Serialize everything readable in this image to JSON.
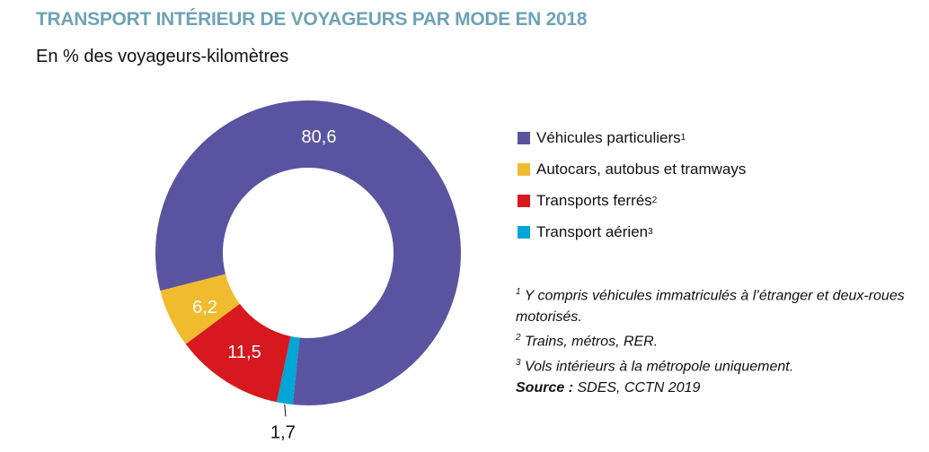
{
  "chart_data": {
    "type": "pie",
    "donut": true,
    "title": "TRANSPORT INTÉRIEUR DE VOYAGEURS PAR MODE EN 2018",
    "subtitle": "En % des voyageurs-kilomètres",
    "slices": [
      {
        "name": "Véhicules particuliers",
        "note": "1",
        "value": 80.6,
        "label": "80,6",
        "color": "#5a54a0"
      },
      {
        "name": "Transport aérien",
        "note": "3",
        "value": 1.7,
        "label": "1,7",
        "color": "#00a6d6"
      },
      {
        "name": "Transports ferrés",
        "note": "2",
        "value": 11.5,
        "label": "11,5",
        "color": "#d7181f"
      },
      {
        "name": "Autocars, autobus et tramways",
        "note": "",
        "value": 6.2,
        "label": "6,2",
        "color": "#f0bb2e"
      }
    ],
    "legend": [
      {
        "name": "Véhicules particuliers",
        "note": "1",
        "color": "#5a54a0"
      },
      {
        "name": "Autocars, autobus et tramways",
        "note": "",
        "color": "#f0bb2e"
      },
      {
        "name": "Transports ferrés",
        "note": "2",
        "color": "#d7181f"
      },
      {
        "name": "Transport aérien",
        "note": "3",
        "color": "#00a6d6"
      }
    ],
    "legend_placement": "right"
  },
  "notes": {
    "n1_mark": "1",
    "n1": " Y compris véhicules immatriculés à l’étranger et deux-roues motorisés.",
    "n2_mark": "2",
    "n2": " Trains, métros, RER.",
    "n3_mark": "3",
    "n3": " Vols intérieurs à la métropole uniquement.",
    "source_label": "Source :",
    "source": " SDES, CCTN 2019"
  }
}
